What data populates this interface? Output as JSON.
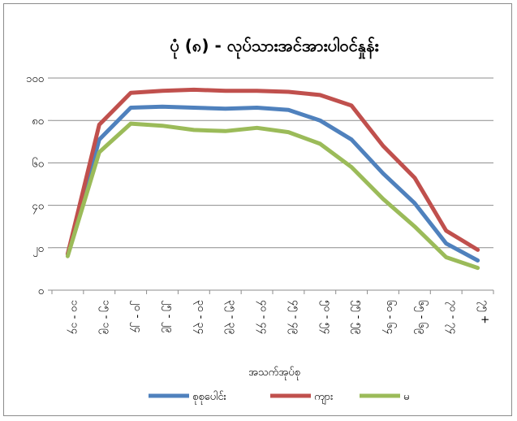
{
  "chart_data": {
    "type": "line",
    "title": "ပုံ (၈) - လုပ်သားအင်အားပါဝင်နှုန်း",
    "xlabel": "အသက်အုပ်စု",
    "ylabel": "",
    "categories": [
      "၁၀ - ၁၄",
      "၁၅ - ၁၉",
      "၂၀ - ၂၄",
      "၂၅ - ၂၉",
      "၃၀ - ၃၄",
      "၃၅ - ၃၉",
      "၄၀ - ၄၄",
      "၄၅ - ၄၉",
      "၅၀ - ၅၄",
      "၅၅ - ၅၉",
      "၆၀ - ၆၄",
      "၆၅ - ၆၉",
      "၇၀ - ၇၄",
      "၇၅ +"
    ],
    "ylim": [
      0,
      100
    ],
    "yticks": [
      "၀",
      "၂၀",
      "၄၀",
      "၆၀",
      "၈၀",
      "၁၀၀"
    ],
    "yticks_values": [
      0,
      20,
      40,
      60,
      80,
      100
    ],
    "grid": true,
    "legend_position": "bottom",
    "series": [
      {
        "name": "စုစုပေါင်း",
        "color": "#4f81bd",
        "values": [
          17,
          71,
          86,
          86.5,
          86,
          85.5,
          86,
          85,
          80,
          71,
          55,
          41,
          22,
          14
        ]
      },
      {
        "name": "ကျား",
        "color": "#c0504d",
        "values": [
          17,
          78,
          93,
          94,
          94.5,
          94,
          94,
          93.5,
          92,
          87,
          68,
          53,
          28,
          19
        ]
      },
      {
        "name": "မ",
        "color": "#9bbb59",
        "values": [
          16,
          65,
          78.5,
          77.5,
          75.5,
          75,
          76.5,
          74.5,
          69,
          58,
          43,
          30,
          15.5,
          10.5
        ]
      }
    ]
  }
}
